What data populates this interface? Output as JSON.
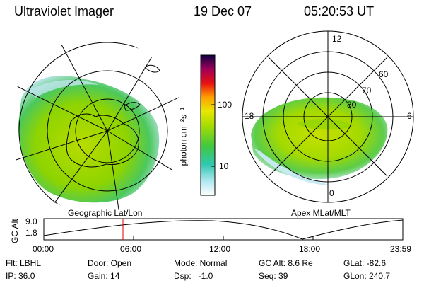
{
  "header": {
    "instrument": "Ultraviolet Imager",
    "date": "19 Dec 07",
    "time": "05:20:53 UT"
  },
  "left_panel": {
    "caption": "Geographic Lat/Lon"
  },
  "right_panel": {
    "caption": "Apex MLat/MLT",
    "mlt_labels": [
      "12",
      "6",
      "0",
      "18"
    ],
    "lat_labels": [
      "60",
      "70",
      "80"
    ]
  },
  "colorbar": {
    "unit_label": "photon cm⁻²s⁻¹",
    "ticks": [
      "100",
      "10"
    ],
    "scale": "log"
  },
  "orbit_plot": {
    "ylabel": "GC Alt",
    "ytick_top": "9.0",
    "ytick_bottom": "1.8",
    "x_ticks": [
      "00:00",
      "06:00",
      "12:00",
      "18:00",
      "23:59"
    ],
    "marker_time": "05:20:53"
  },
  "status": {
    "flt": "Flt: LBHL",
    "ip": "IP: 36.0",
    "door": "Door: Open",
    "gain": "Gain: 14",
    "mode": "Mode: Normal",
    "dsp": "Dsp:   -1.0",
    "gcalt": "GC Alt: 8.6 Re",
    "seq": "Seq: 39",
    "glat": "GLat: -82.6",
    "glon": "GLon: 240.7"
  },
  "colors": {
    "aurora_bright": "#c8e000",
    "aurora_mid": "#7ed000",
    "aurora_low": "#2ccf9a",
    "aurora_faint": "#c8ecf0",
    "marker": "#e00000"
  }
}
